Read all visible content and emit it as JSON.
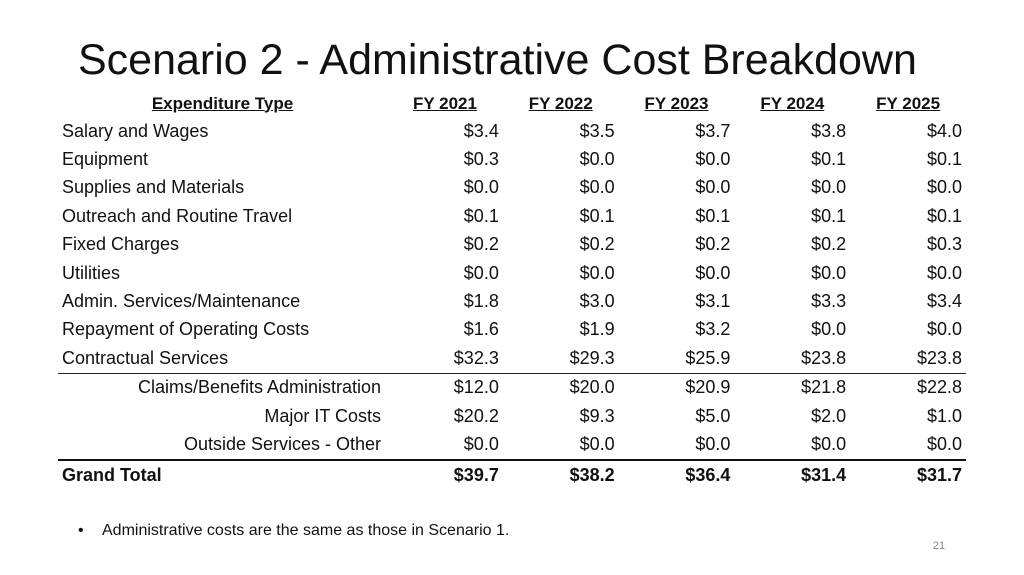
{
  "title": "Scenario 2 - Administrative Cost Breakdown",
  "table": {
    "headers": [
      "Expenditure Type",
      "FY 2021",
      "FY 2022",
      "FY 2023",
      "FY 2024",
      "FY 2025"
    ],
    "rows": [
      {
        "label": "Salary and Wages",
        "values": [
          "$3.4",
          "$3.5",
          "$3.7",
          "$3.8",
          "$4.0"
        ]
      },
      {
        "label": "Equipment",
        "values": [
          "$0.3",
          "$0.0",
          "$0.0",
          "$0.1",
          "$0.1"
        ]
      },
      {
        "label": "Supplies and Materials",
        "values": [
          "$0.0",
          "$0.0",
          "$0.0",
          "$0.0",
          "$0.0"
        ]
      },
      {
        "label": "Outreach and Routine Travel",
        "values": [
          "$0.1",
          "$0.1",
          "$0.1",
          "$0.1",
          "$0.1"
        ]
      },
      {
        "label": "Fixed Charges",
        "values": [
          "$0.2",
          "$0.2",
          "$0.2",
          "$0.2",
          "$0.3"
        ]
      },
      {
        "label": "Utilities",
        "values": [
          "$0.0",
          "$0.0",
          "$0.0",
          "$0.0",
          "$0.0"
        ]
      },
      {
        "label": "Admin. Services/Maintenance",
        "values": [
          "$1.8",
          "$3.0",
          "$3.1",
          "$3.3",
          "$3.4"
        ]
      },
      {
        "label": "Repayment of Operating Costs",
        "values": [
          "$1.6",
          "$1.9",
          "$3.2",
          "$0.0",
          "$0.0"
        ]
      },
      {
        "label": "Contractual Services",
        "values": [
          "$32.3",
          "$29.3",
          "$25.9",
          "$23.8",
          "$23.8"
        ]
      },
      {
        "label": "Claims/Benefits Administration",
        "values": [
          "$12.0",
          "$20.0",
          "$20.9",
          "$21.8",
          "$22.8"
        ]
      },
      {
        "label": "Major IT Costs",
        "values": [
          "$20.2",
          "$9.3",
          "$5.0",
          "$2.0",
          "$1.0"
        ]
      },
      {
        "label": "Outside Services - Other",
        "values": [
          "$0.0",
          "$0.0",
          "$0.0",
          "$0.0",
          "$0.0"
        ]
      }
    ],
    "total": {
      "label": "Grand Total",
      "values": [
        "$39.7",
        "$38.2",
        "$36.4",
        "$31.4",
        "$31.7"
      ]
    }
  },
  "note": "Administrative costs are the same as those in Scenario 1.",
  "bullet": "•",
  "page_number": "21"
}
